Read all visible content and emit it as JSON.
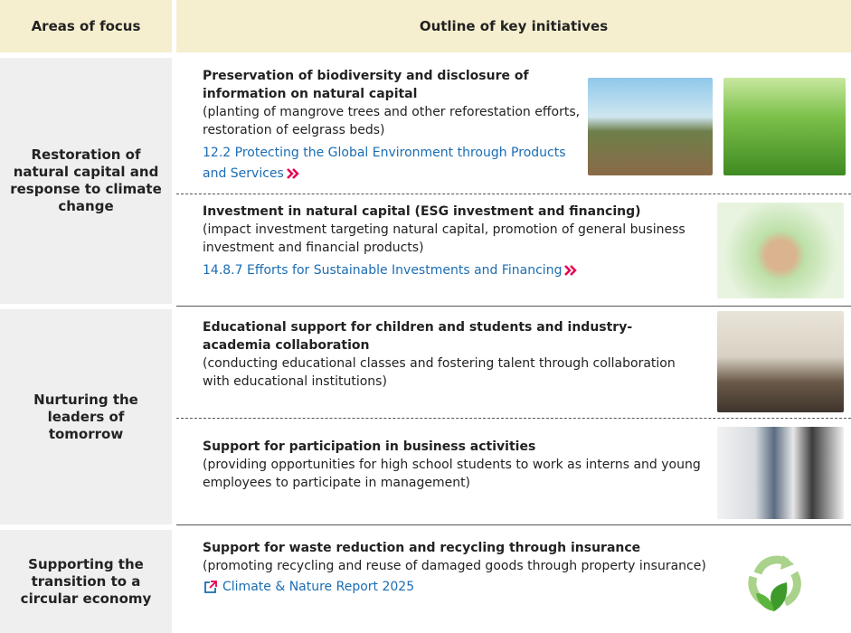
{
  "table": {
    "headers": [
      "Areas of focus",
      "Outline of key initiatives"
    ],
    "rows": [
      {
        "area": "Restoration of natural capital and response to climate change",
        "initiatives": [
          {
            "title": "Preservation of biodiversity and disclosure of information on natural capital",
            "description": "(planting of mangrove trees and other reforestation efforts, restoration of eelgrass beds)",
            "link": "12.2 Protecting the Global Environment through Products and Services"
          },
          {
            "title": "Investment in natural capital (ESG investment and financing)",
            "description": "(impact investment targeting natural capital, promotion of general business investment and financial products)",
            "link": "14.8.7 Efforts for Sustainable Investments and Financing"
          }
        ]
      },
      {
        "area": "Nurturing the leaders of tomorrow",
        "initiatives": [
          {
            "title": "Educational support for children and students and industry-academia collaboration",
            "description": "(conducting educational classes and fostering talent through collaboration with educational institutions)"
          },
          {
            "title": "Support for participation in business activities",
            "description": "(providing opportunities for high school students to work as interns and young employees to participate in management)"
          }
        ]
      },
      {
        "area": "Supporting the transition to a circular economy",
        "initiatives": [
          {
            "title": "Support for waste reduction and recycling through insurance",
            "description": "(promoting recycling and reuse of damaged goods through property insurance)",
            "link": "Climate & Nature Report 2025"
          }
        ]
      }
    ]
  }
}
